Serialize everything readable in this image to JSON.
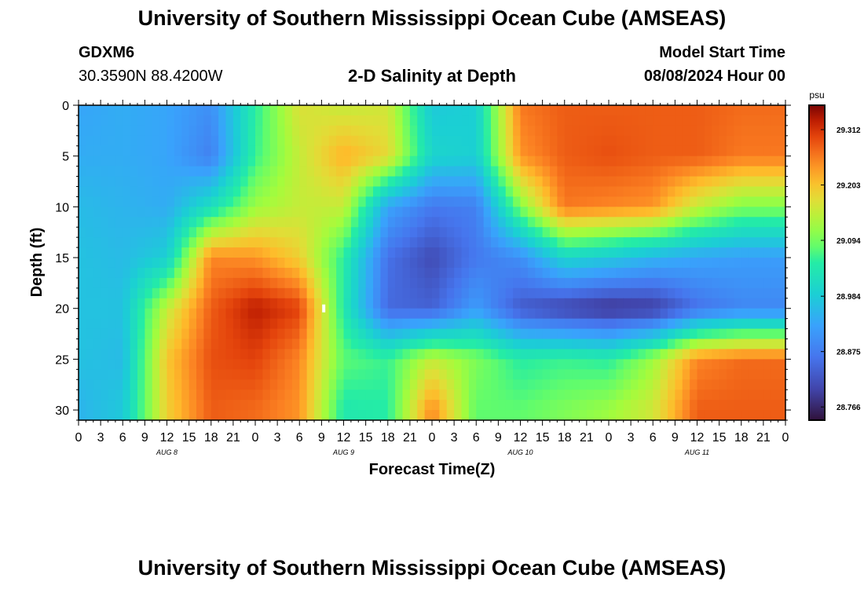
{
  "header": {
    "title": "University of Southern Mississippi Ocean Cube (AMSEAS)",
    "station": "GDXM6",
    "coords": "30.3590N  88.4200W",
    "subtitle": "2-D Salinity at Depth",
    "start_label": "Model Start Time",
    "start_time": "08/08/2024 Hour 00"
  },
  "footer": {
    "title": "University of Southern Mississippi Ocean Cube (AMSEAS)"
  },
  "chart_data": {
    "type": "heatmap",
    "title": "2-D Salinity at Depth",
    "xlabel": "Forecast Time(Z)",
    "ylabel": "Depth (ft)",
    "xlim": [
      0,
      96
    ],
    "ylim": [
      0,
      31
    ],
    "x_tick_labels": [
      "0",
      "3",
      "6",
      "9",
      "12",
      "15",
      "18",
      "21",
      "0",
      "3",
      "6",
      "9",
      "12",
      "15",
      "18",
      "21",
      "0",
      "3",
      "6",
      "9",
      "12",
      "15",
      "18",
      "21",
      "0",
      "3",
      "6",
      "9",
      "12",
      "15",
      "18",
      "21",
      "0"
    ],
    "day_labels": [
      "AUG 8",
      "AUG 9",
      "AUG 10",
      "AUG 11"
    ],
    "y_ticks": [
      0,
      5,
      10,
      15,
      20,
      25,
      30
    ],
    "colorbar": {
      "unit": "psu",
      "ticks": [
        "29.312",
        "29.203",
        "29.094",
        "28.984",
        "28.875",
        "28.766"
      ],
      "range": [
        28.74,
        29.36
      ]
    },
    "hours": [
      0,
      6,
      12,
      18,
      24,
      30,
      36,
      42,
      48,
      54,
      60,
      66,
      72,
      78,
      84,
      90,
      96
    ],
    "depths": [
      0,
      5,
      10,
      15,
      20,
      25,
      30
    ],
    "values": [
      [
        28.93,
        28.94,
        28.93,
        28.9,
        29.05,
        29.17,
        29.15,
        29.16,
        28.98,
        28.99,
        29.26,
        29.28,
        29.28,
        29.28,
        29.28,
        29.27,
        29.27
      ],
      [
        28.94,
        28.94,
        28.93,
        28.88,
        29.06,
        29.15,
        29.22,
        29.18,
        29.0,
        28.99,
        29.24,
        29.28,
        29.29,
        29.28,
        29.28,
        29.26,
        29.26
      ],
      [
        28.96,
        28.95,
        28.94,
        29.02,
        29.12,
        29.15,
        29.15,
        28.93,
        28.87,
        28.88,
        29.1,
        29.26,
        29.25,
        29.24,
        29.15,
        29.1,
        29.1
      ],
      [
        28.97,
        28.96,
        28.99,
        29.25,
        29.24,
        29.19,
        29.05,
        28.86,
        28.81,
        28.87,
        28.9,
        29.0,
        28.98,
        28.95,
        28.93,
        28.92,
        28.92
      ],
      [
        28.97,
        28.97,
        29.15,
        29.28,
        29.33,
        29.3,
        29.04,
        28.85,
        28.84,
        28.92,
        28.83,
        28.8,
        28.78,
        28.79,
        28.86,
        28.89,
        28.89
      ],
      [
        28.97,
        28.96,
        29.2,
        29.29,
        29.3,
        29.25,
        29.08,
        29.06,
        29.15,
        29.1,
        29.05,
        29.06,
        29.05,
        29.12,
        29.25,
        29.27,
        29.27
      ],
      [
        28.95,
        28.98,
        29.19,
        29.28,
        29.27,
        29.24,
        29.04,
        29.05,
        29.25,
        29.08,
        29.08,
        29.1,
        29.12,
        29.16,
        29.28,
        29.28,
        29.28
      ]
    ]
  }
}
